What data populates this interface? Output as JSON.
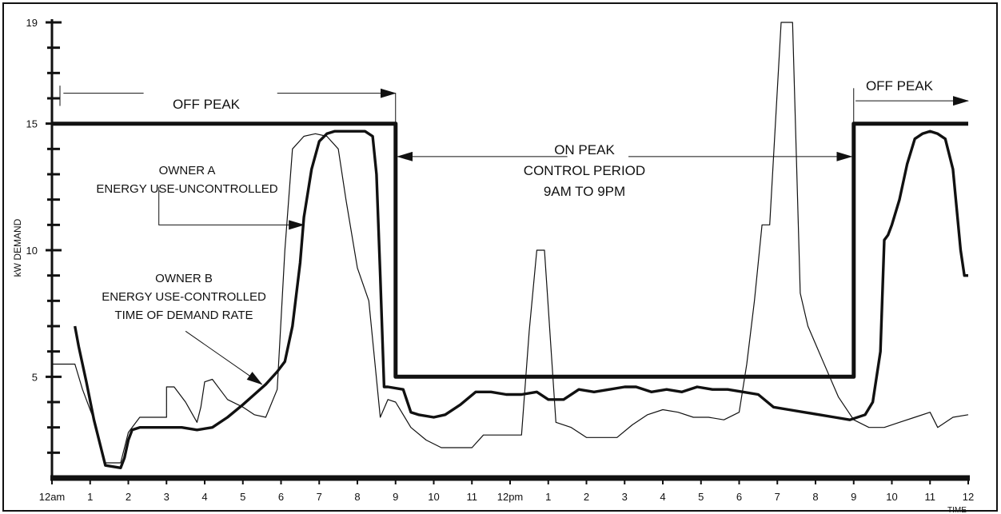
{
  "chart_data": {
    "type": "line",
    "title": "",
    "ylabel": "kW DEMAND",
    "xlabel": "TIME",
    "ylim": [
      1,
      19
    ],
    "xlim": [
      0,
      24
    ],
    "y_ticks": [
      {
        "value": 5,
        "label": "5"
      },
      {
        "value": 10,
        "label": "10"
      },
      {
        "value": 15,
        "label": "15"
      },
      {
        "value": 19,
        "label": "19"
      }
    ],
    "y_minor_ticks": [
      2,
      3,
      4,
      6,
      7,
      8,
      9,
      11,
      12,
      13,
      14,
      16,
      17,
      18
    ],
    "x_ticks": [
      {
        "value": 0,
        "label": "12am"
      },
      {
        "value": 1,
        "label": "1"
      },
      {
        "value": 2,
        "label": "2"
      },
      {
        "value": 3,
        "label": "3"
      },
      {
        "value": 4,
        "label": "4"
      },
      {
        "value": 5,
        "label": "5"
      },
      {
        "value": 6,
        "label": "6"
      },
      {
        "value": 7,
        "label": "7"
      },
      {
        "value": 8,
        "label": "8"
      },
      {
        "value": 9,
        "label": "9"
      },
      {
        "value": 10,
        "label": "10"
      },
      {
        "value": 11,
        "label": "11"
      },
      {
        "value": 12,
        "label": "12pm"
      },
      {
        "value": 13,
        "label": "1"
      },
      {
        "value": 14,
        "label": "2"
      },
      {
        "value": 15,
        "label": "3"
      },
      {
        "value": 16,
        "label": "4"
      },
      {
        "value": 17,
        "label": "5"
      },
      {
        "value": 18,
        "label": "6"
      },
      {
        "value": 19,
        "label": "7"
      },
      {
        "value": 20,
        "label": "8"
      },
      {
        "value": 21,
        "label": "9"
      },
      {
        "value": 22,
        "label": "10"
      },
      {
        "value": 23,
        "label": "11"
      },
      {
        "value": 24,
        "label": "12"
      }
    ],
    "series": [
      {
        "name": "",
        "style": "thick-step",
        "x": [
          0,
          9,
          9,
          21,
          21,
          24
        ],
        "y": [
          15,
          15,
          5,
          5,
          15,
          15
        ]
      },
      {
        "name": "",
        "style": "thick",
        "x": [
          0.6,
          0.7,
          0.9,
          1.1,
          1.4,
          1.8,
          1.9,
          2.0,
          2.1,
          2.3,
          2.6,
          3.0,
          3.4,
          3.8,
          4.2,
          4.6,
          5.0,
          5.3,
          5.6,
          5.9,
          6.1,
          6.3,
          6.5,
          6.6,
          6.8,
          7.0,
          7.2,
          7.4,
          7.6,
          7.8,
          8.0,
          8.2,
          8.4,
          8.5,
          8.6,
          8.7,
          8.8,
          9.2,
          9.4,
          9.6,
          10.0,
          10.3,
          10.7,
          11.1,
          11.5,
          11.9,
          12.3,
          12.7,
          13.0,
          13.4,
          13.8,
          14.2,
          14.6,
          15.0,
          15.3,
          15.7,
          16.1,
          16.5,
          16.9,
          17.3,
          17.7,
          18.1,
          18.5,
          18.9,
          19.3,
          19.7,
          20.1,
          20.5,
          20.9,
          21.3,
          21.5,
          21.7,
          21.8,
          21.9,
          22.0,
          22.2,
          22.4,
          22.6,
          22.8,
          23.0,
          23.2,
          23.4,
          23.6,
          23.8,
          23.9,
          24.0
        ],
        "y": [
          7.0,
          6.2,
          4.8,
          3.3,
          1.5,
          1.4,
          1.8,
          2.5,
          2.9,
          3.0,
          3.0,
          3.0,
          3.0,
          2.9,
          3.0,
          3.4,
          3.9,
          4.3,
          4.7,
          5.2,
          5.6,
          7.0,
          9.5,
          11.3,
          13.2,
          14.3,
          14.6,
          14.7,
          14.7,
          14.7,
          14.7,
          14.7,
          14.5,
          13.0,
          9.0,
          4.6,
          4.6,
          4.5,
          3.6,
          3.5,
          3.4,
          3.5,
          3.9,
          4.4,
          4.4,
          4.3,
          4.3,
          4.4,
          4.1,
          4.1,
          4.5,
          4.4,
          4.5,
          4.6,
          4.6,
          4.4,
          4.5,
          4.4,
          4.6,
          4.5,
          4.5,
          4.4,
          4.3,
          3.8,
          3.7,
          3.6,
          3.5,
          3.4,
          3.3,
          3.5,
          4.0,
          6.0,
          10.4,
          10.6,
          11.0,
          12.0,
          13.4,
          14.4,
          14.6,
          14.7,
          14.6,
          14.4,
          13.2,
          10.0,
          9.0,
          9.0
        ]
      },
      {
        "name": "",
        "style": "thin",
        "x": [
          0.0,
          0.6,
          0.8,
          1.1,
          1.4,
          1.8,
          2.0,
          2.3,
          2.6,
          3.0,
          3.0,
          3.2,
          3.5,
          3.8,
          3.9,
          4.0,
          4.2,
          4.4,
          4.6,
          5.0,
          5.3,
          5.6,
          5.9,
          6.1,
          6.3,
          6.6,
          6.9,
          7.2,
          7.5,
          7.7,
          8.0,
          8.3,
          8.6,
          8.8,
          9.0,
          9.4,
          9.8,
          10.2,
          10.6,
          11.0,
          11.3,
          11.6,
          12.0,
          12.3,
          12.5,
          12.7,
          12.9,
          13.2,
          13.6,
          14.0,
          14.4,
          14.8,
          15.2,
          15.6,
          16.0,
          16.4,
          16.8,
          17.2,
          17.6,
          18.0,
          18.2,
          18.4,
          18.6,
          18.8,
          19.1,
          19.4,
          19.6,
          19.8,
          20.2,
          20.6,
          21.0,
          21.4,
          21.8,
          22.2,
          22.6,
          23.0,
          23.2,
          23.6,
          24.0
        ],
        "y": [
          5.5,
          5.5,
          4.5,
          3.3,
          1.6,
          1.6,
          2.8,
          3.4,
          3.4,
          3.4,
          4.6,
          4.6,
          4.0,
          3.2,
          3.8,
          4.8,
          4.9,
          4.5,
          4.1,
          3.8,
          3.5,
          3.4,
          4.5,
          10.0,
          14.0,
          14.5,
          14.6,
          14.5,
          14.0,
          12.0,
          9.3,
          8.0,
          3.4,
          4.1,
          4.0,
          3.0,
          2.5,
          2.2,
          2.2,
          2.2,
          2.7,
          2.7,
          2.7,
          2.7,
          6.8,
          10.0,
          10.0,
          3.2,
          3.0,
          2.6,
          2.6,
          2.6,
          3.1,
          3.5,
          3.7,
          3.6,
          3.4,
          3.4,
          3.3,
          3.6,
          5.5,
          8.0,
          11.0,
          11.0,
          19.0,
          19.0,
          8.3,
          7.0,
          5.6,
          4.2,
          3.3,
          3.0,
          3.0,
          3.2,
          3.4,
          3.6,
          3.0,
          3.4,
          3.5
        ]
      }
    ],
    "annotations": [
      {
        "id": "off-peak-left",
        "text": "OFF PEAK"
      },
      {
        "id": "owner-a-l1",
        "text": "OWNER A"
      },
      {
        "id": "owner-a-l2",
        "text": "ENERGY USE-UNCONTROLLED"
      },
      {
        "id": "owner-b-l1",
        "text": "OWNER B"
      },
      {
        "id": "owner-b-l2",
        "text": "ENERGY USE-CONTROLLED"
      },
      {
        "id": "owner-b-l3",
        "text": "TIME OF DEMAND RATE"
      },
      {
        "id": "on-peak-l1",
        "text": "ON PEAK"
      },
      {
        "id": "on-peak-l2",
        "text": "CONTROL PERIOD"
      },
      {
        "id": "on-peak-l3",
        "text": "9AM TO 9PM"
      },
      {
        "id": "off-peak-right",
        "text": "OFF PEAK"
      }
    ]
  }
}
